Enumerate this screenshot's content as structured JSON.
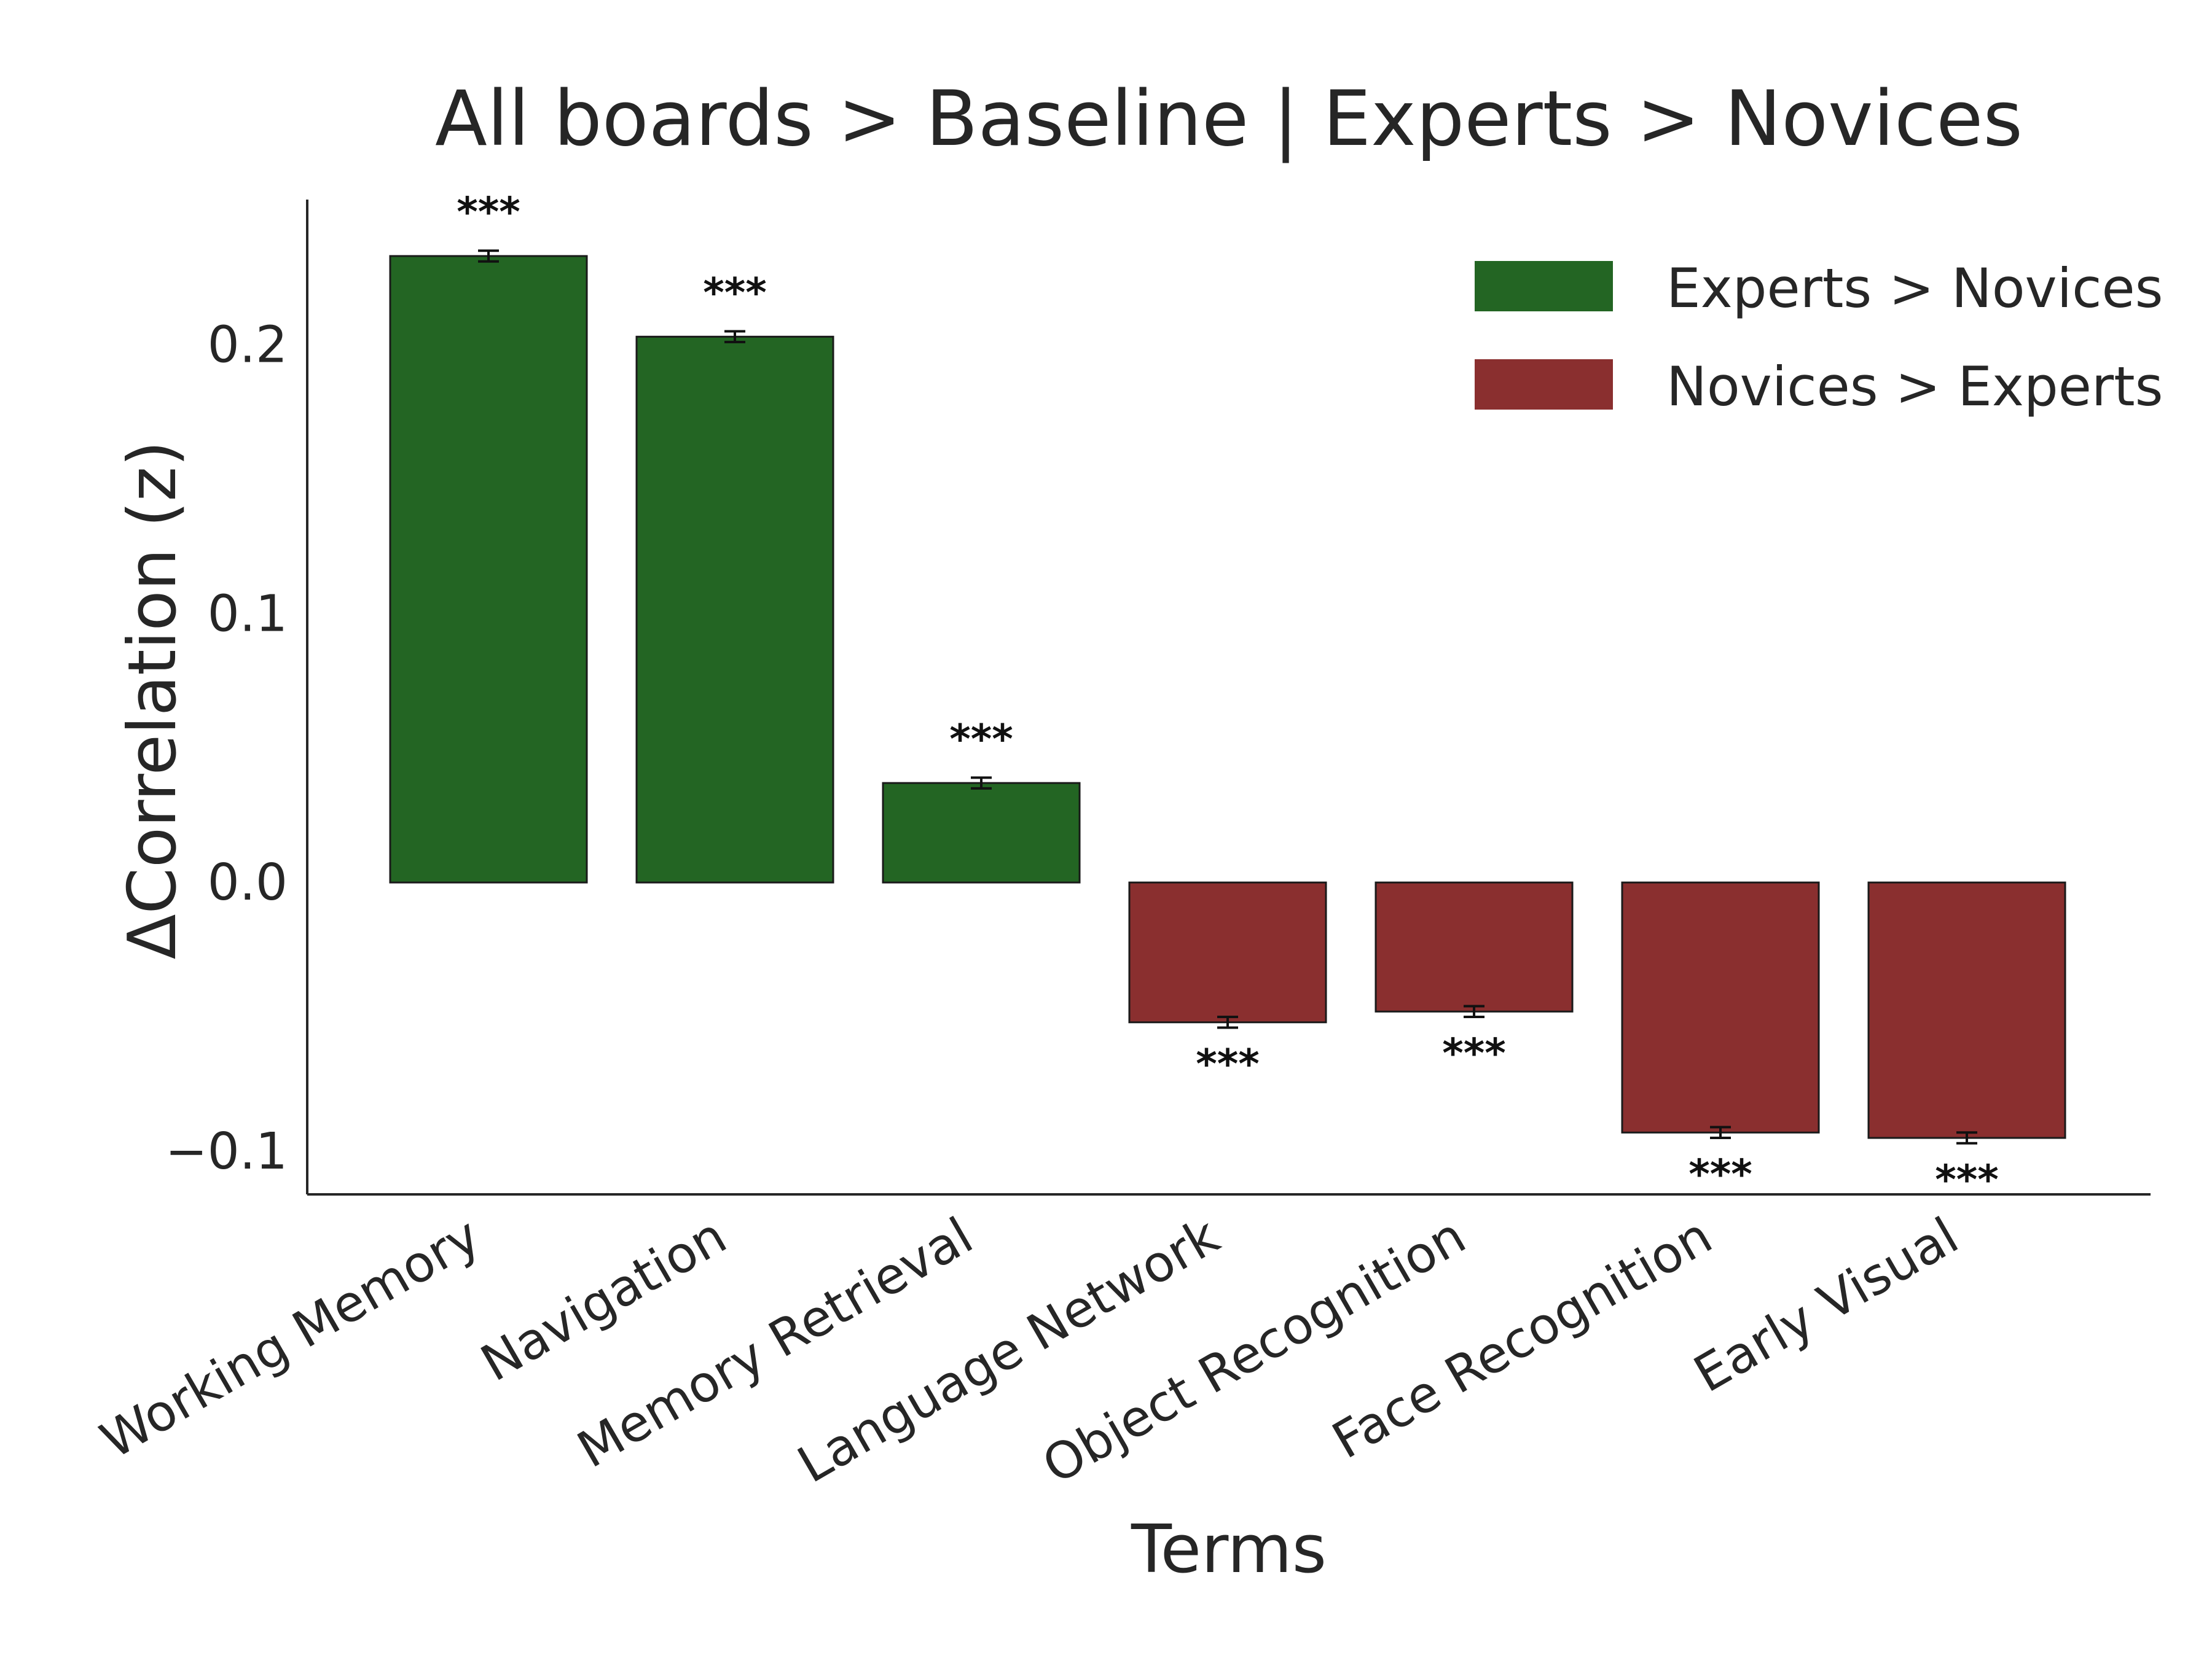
{
  "chart_data": {
    "type": "bar",
    "title": "All boards > Baseline | Experts > Novices",
    "xlabel": "Terms",
    "ylabel": "ΔCorrelation (z)",
    "ylim": [
      -0.116,
      0.254
    ],
    "yticks": [
      -0.1,
      0.0,
      0.1,
      0.2
    ],
    "ytick_labels": [
      "−0.1",
      "0.0",
      "0.1",
      "0.2"
    ],
    "grid": false,
    "legend_position": "top-right",
    "categories": [
      "Working Memory",
      "Navigation",
      "Memory Retrieval",
      "Language Network",
      "Object Recognition",
      "Face Recognition",
      "Early Visual"
    ],
    "values": [
      0.233,
      0.203,
      0.037,
      -0.052,
      -0.048,
      -0.093,
      -0.095
    ],
    "errors": [
      0.002,
      0.002,
      0.002,
      0.002,
      0.002,
      0.002,
      0.002
    ],
    "significance": [
      "***",
      "***",
      "***",
      "***",
      "***",
      "***",
      "***"
    ],
    "series": [
      {
        "name": "Experts > Novices",
        "color": "#236523"
      },
      {
        "name": "Novices > Experts",
        "color": "#8a2f2f"
      }
    ]
  }
}
